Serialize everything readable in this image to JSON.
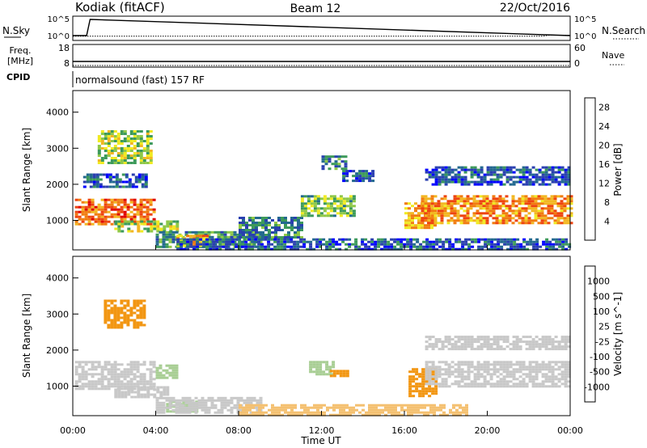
{
  "header": {
    "station": "Kodiak (fitACF)",
    "beam": "Beam 12",
    "date": "22/Oct/2016"
  },
  "noise_panel": {
    "left_label": "N.Sky",
    "right_label": "N.Search",
    "left_ticks": [
      "10^5",
      "10^0"
    ],
    "right_ticks": [
      "10^5",
      "10^0"
    ]
  },
  "freq_panel": {
    "left_label_top": "Freq.",
    "left_label_bottom": "[MHz]",
    "left_ticks": [
      "18",
      "8"
    ],
    "right_label": "Nave",
    "right_ticks": [
      "60",
      "0"
    ]
  },
  "cpid": {
    "label": "CPID",
    "value": "normalsound (fast) 157 RF"
  },
  "colors": {
    "power_scale": [
      "#0000ff",
      "#2a3fb0",
      "#23698f",
      "#3d9a5a",
      "#8fc847",
      "#f0ea21",
      "#f2b722",
      "#f17c10",
      "#ee4410",
      "#e00000"
    ],
    "velocity_scale": [
      "#2040ff",
      "#2a5bb6",
      "#3d7e5a",
      "#52b830",
      "#a8ce94",
      "#c8c8c8",
      "#f4c070",
      "#f29612",
      "#ee5a08",
      "#e00000"
    ]
  },
  "chart_data": [
    {
      "type": "line",
      "title": "",
      "series": [
        {
          "name": "N.Sky",
          "x": [
            "00:00",
            "00:40",
            "00:50",
            "24:00"
          ],
          "y_log10": [
            0,
            0,
            5,
            0
          ]
        },
        {
          "name": "N.Search",
          "x": [
            "00:00",
            "22:40",
            "23:00",
            "24:00"
          ],
          "y_log10": [
            0.2,
            0.2,
            0.5,
            0.5
          ]
        }
      ]
    },
    {
      "type": "line",
      "series": [
        {
          "name": "Freq.",
          "x": [
            "00:00",
            "24:00"
          ],
          "y": [
            10.5,
            10.5
          ]
        },
        {
          "name": "Nave",
          "x": [
            "00:00",
            "24:00"
          ],
          "y": [
            0,
            0
          ]
        }
      ]
    },
    {
      "type": "heatmap",
      "xlabel": "",
      "ylabel": "Slant Range [km]",
      "xlim": [
        0,
        24
      ],
      "ylim": [
        180,
        4600
      ],
      "y_ticks": [
        "1000",
        "2000",
        "3000",
        "4000"
      ],
      "colorbar": {
        "label": "Power [dB]",
        "ticks": [
          "4",
          "8",
          "12",
          "16",
          "20",
          "24",
          "28"
        ],
        "range": [
          0,
          30
        ]
      },
      "regions": [
        {
          "t": [
            0.1,
            3.9
          ],
          "r": [
            900,
            1600
          ],
          "level": 24
        },
        {
          "t": [
            0.5,
            3.5
          ],
          "r": [
            1950,
            2300
          ],
          "level": 6
        },
        {
          "t": [
            1.2,
            3.8
          ],
          "r": [
            2600,
            3500
          ],
          "level": 14
        },
        {
          "t": [
            2.0,
            5.0
          ],
          "r": [
            700,
            1000
          ],
          "level": 14
        },
        {
          "t": [
            4.0,
            9.0
          ],
          "r": [
            250,
            700
          ],
          "level": 10
        },
        {
          "t": [
            5.0,
            6.5
          ],
          "r": [
            300,
            600
          ],
          "level": 20
        },
        {
          "t": [
            8.0,
            11.0
          ],
          "r": [
            500,
            1100
          ],
          "level": 8
        },
        {
          "t": [
            11.0,
            13.5
          ],
          "r": [
            1100,
            1700
          ],
          "level": 13
        },
        {
          "t": [
            12.0,
            13.2
          ],
          "r": [
            2400,
            2800
          ],
          "level": 8
        },
        {
          "t": [
            13.0,
            14.5
          ],
          "r": [
            2100,
            2400
          ],
          "level": 6
        },
        {
          "t": [
            16.0,
            17.5
          ],
          "r": [
            800,
            1500
          ],
          "level": 20
        },
        {
          "t": [
            16.8,
            24.0
          ],
          "r": [
            900,
            1700
          ],
          "level": 22
        },
        {
          "t": [
            17.0,
            24.0
          ],
          "r": [
            2000,
            2500
          ],
          "level": 6
        },
        {
          "t": [
            5.0,
            24.0
          ],
          "r": [
            200,
            500
          ],
          "level": 6
        }
      ]
    },
    {
      "type": "heatmap",
      "xlabel": "Time UT",
      "ylabel": "Slant Range [km]",
      "xlim": [
        0,
        24
      ],
      "ylim": [
        180,
        4600
      ],
      "x_ticks": [
        "00:00",
        "04:00",
        "08:00",
        "12:00",
        "16:00",
        "20:00",
        "00:00"
      ],
      "y_ticks": [
        "1000",
        "2000",
        "3000",
        "4000"
      ],
      "colorbar": {
        "label": "Velocity [m s^-1]",
        "ticks": [
          "1000",
          "500",
          "100",
          "25",
          "-25",
          "-100",
          "-500",
          "-1000"
        ]
      },
      "regions": [
        {
          "t": [
            0.1,
            4.0
          ],
          "r": [
            900,
            1700
          ],
          "level": 0
        },
        {
          "t": [
            1.5,
            3.5
          ],
          "r": [
            2600,
            3400
          ],
          "level": -300
        },
        {
          "t": [
            2.0,
            4.5
          ],
          "r": [
            700,
            1000
          ],
          "level": 0
        },
        {
          "t": [
            4.0,
            5.0
          ],
          "r": [
            1200,
            1600
          ],
          "level": 80
        },
        {
          "t": [
            4.5,
            6.0
          ],
          "r": [
            300,
            600
          ],
          "level": 80
        },
        {
          "t": [
            4.0,
            9.0
          ],
          "r": [
            250,
            700
          ],
          "level": 0
        },
        {
          "t": [
            11.4,
            12.5
          ],
          "r": [
            1300,
            1700
          ],
          "level": 80
        },
        {
          "t": [
            12.4,
            13.2
          ],
          "r": [
            1300,
            1450
          ],
          "level": -300
        },
        {
          "t": [
            16.2,
            17.5
          ],
          "r": [
            700,
            1500
          ],
          "level": -300
        },
        {
          "t": [
            17.0,
            24.0
          ],
          "r": [
            1000,
            1700
          ],
          "level": 0
        },
        {
          "t": [
            8.0,
            19.0
          ],
          "r": [
            200,
            500
          ],
          "level": -60
        },
        {
          "t": [
            17.0,
            24.0
          ],
          "r": [
            2000,
            2400
          ],
          "level": 0
        }
      ]
    }
  ],
  "superscript_minus1": "-1"
}
